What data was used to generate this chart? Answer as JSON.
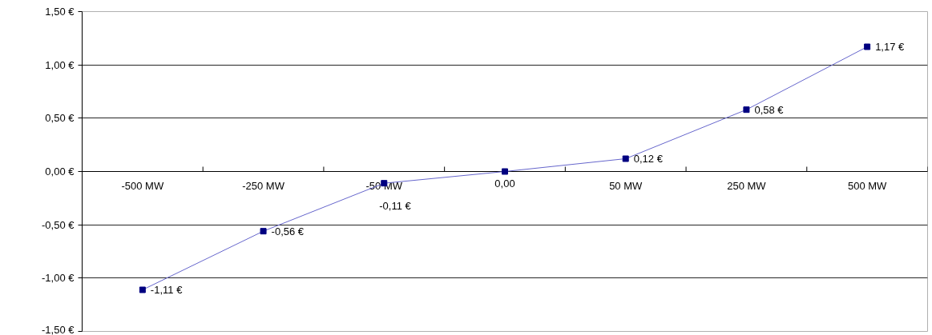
{
  "chart_data": {
    "type": "line",
    "categories": [
      "-500 MW",
      "-250 MW",
      "-50 MW",
      "0,00",
      "50 MW",
      "250 MW",
      "500 MW"
    ],
    "series": [
      {
        "color": "#000080",
        "values": [
          -1.11,
          -0.56,
          -0.11,
          0,
          0.12,
          0.58,
          1.17
        ],
        "value_labels": [
          "-1,11 €",
          "-0,56 €",
          "-0,11 €",
          null,
          "0,12 €",
          "0,58 €",
          "1,17 €"
        ]
      }
    ],
    "ylim": [
      -1.5,
      1.5
    ],
    "yticks": [
      {
        "value": -1.5,
        "label": "-1,50 €"
      },
      {
        "value": -1.0,
        "label": "-1,00 €"
      },
      {
        "value": -0.5,
        "label": "-0,50 €"
      },
      {
        "value": 0,
        "label": "0,00 €"
      },
      {
        "value": 0.5,
        "label": "0,50 €"
      },
      {
        "value": 1.0,
        "label": "1,00 €"
      },
      {
        "value": 1.5,
        "label": "1,50 €"
      }
    ],
    "grid": "y",
    "marker": "square",
    "line_style": "solid"
  }
}
